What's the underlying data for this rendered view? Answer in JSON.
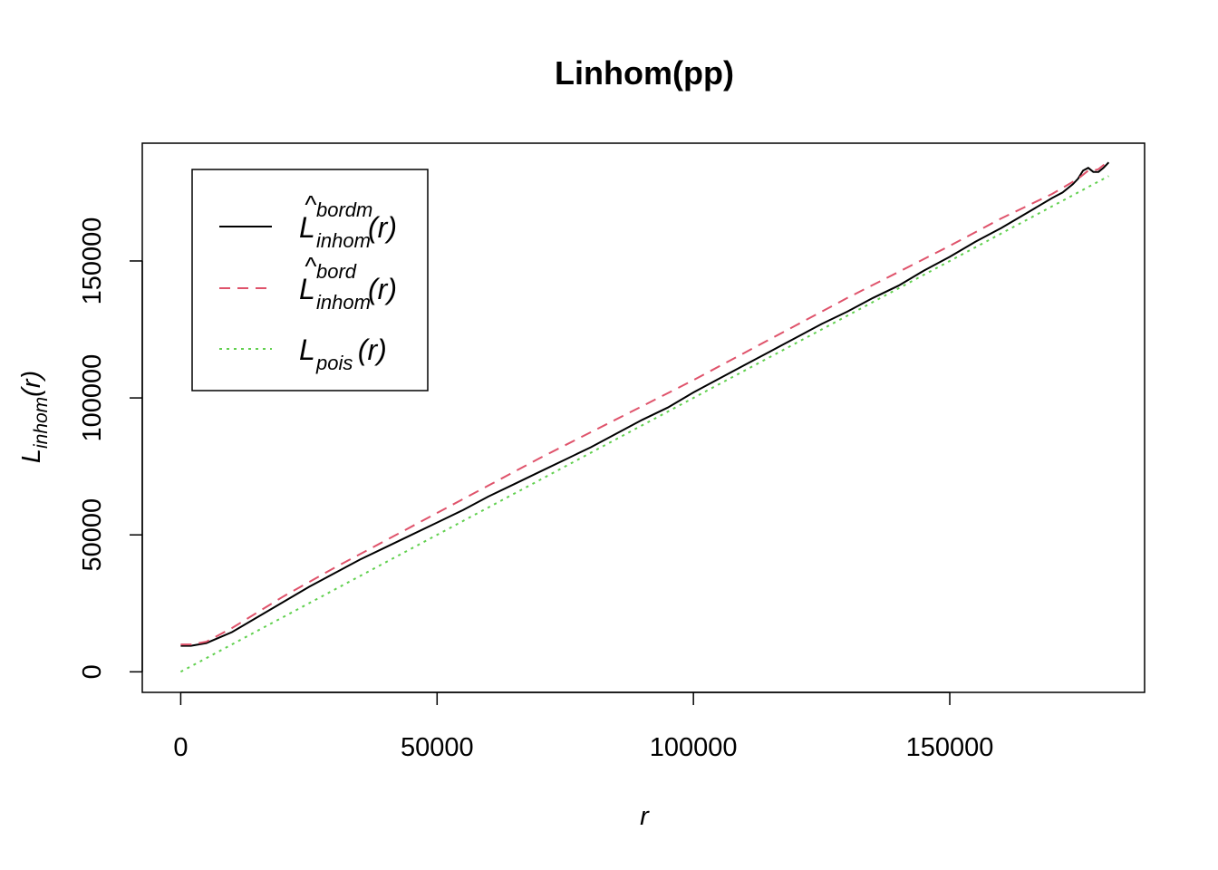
{
  "chart_data": {
    "type": "line",
    "title": "Linhom(pp)",
    "xlabel": "r",
    "ylabel": {
      "main": "L",
      "sub": "inhom",
      "arg": "(r)"
    },
    "xlim": [
      -7500,
      188000
    ],
    "ylim": [
      -7500,
      193000
    ],
    "xticks": [
      0,
      50000,
      100000,
      150000
    ],
    "yticks": [
      0,
      50000,
      100000,
      150000
    ],
    "xtick_labels": [
      "0",
      "50000",
      "100000",
      "150000"
    ],
    "ytick_labels": [
      "0",
      "50000",
      "100000",
      "150000"
    ],
    "grid": false,
    "legend_position": "top-left",
    "series": [
      {
        "name": {
          "main": "L",
          "hat": "^",
          "sup": "bordm",
          "sub": "inhom",
          "arg": "(r)"
        },
        "color": "#000000",
        "dash": "solid",
        "x": [
          0,
          2000,
          5000,
          10000,
          15000,
          20000,
          25000,
          30000,
          35000,
          40000,
          45000,
          50000,
          55000,
          60000,
          65000,
          70000,
          75000,
          80000,
          85000,
          90000,
          95000,
          100000,
          105000,
          110000,
          115000,
          120000,
          125000,
          130000,
          135000,
          140000,
          145000,
          150000,
          155000,
          160000,
          165000,
          170000,
          172000,
          174000,
          175000,
          176000,
          177000,
          178000,
          179000,
          180000,
          181000
        ],
        "y": [
          9500,
          9500,
          10500,
          14500,
          20000,
          25500,
          31000,
          36000,
          41000,
          45500,
          50000,
          54500,
          59000,
          64000,
          68500,
          73000,
          77500,
          82000,
          87000,
          92000,
          96500,
          102000,
          107000,
          112000,
          117000,
          122000,
          127000,
          131500,
          136500,
          141000,
          146500,
          151500,
          157000,
          162000,
          167500,
          173000,
          175000,
          178000,
          180000,
          183000,
          184000,
          182500,
          182500,
          184000,
          186000
        ]
      },
      {
        "name": {
          "main": "L",
          "hat": "^",
          "sup": "bord",
          "sub": "inhom",
          "arg": "(r)"
        },
        "color": "#DF536B",
        "dash": "dashed",
        "x": [
          0,
          2000,
          5000,
          10000,
          20000,
          30000,
          40000,
          50000,
          60000,
          70000,
          80000,
          90000,
          100000,
          110000,
          120000,
          130000,
          140000,
          150000,
          160000,
          170000,
          175000,
          176000,
          177000,
          178000,
          179000,
          180000,
          181000
        ],
        "y": [
          10000,
          10000,
          11000,
          16000,
          27500,
          38000,
          48000,
          58000,
          68000,
          78000,
          87500,
          97000,
          106500,
          116500,
          126500,
          136500,
          146000,
          155500,
          165500,
          174500,
          180000,
          181500,
          183000,
          183000,
          183500,
          185000,
          186500
        ]
      },
      {
        "name": {
          "main": "L",
          "sub": "pois",
          "arg": "(r)"
        },
        "color": "#61D04F",
        "dash": "dotted",
        "x": [
          0,
          181000
        ],
        "y": [
          0,
          181000
        ]
      }
    ]
  }
}
